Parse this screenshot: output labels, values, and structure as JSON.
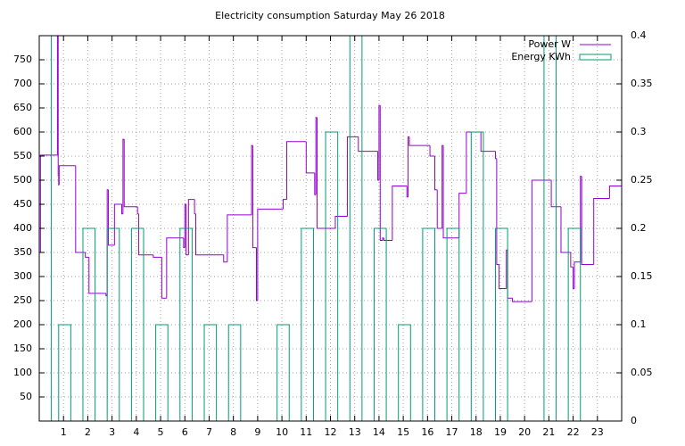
{
  "chart_data": {
    "type": "line",
    "title": "Electricity consumption Saturday May 26 2018",
    "xlim": [
      0,
      24
    ],
    "xticks": [
      1,
      2,
      3,
      4,
      5,
      6,
      7,
      8,
      9,
      10,
      11,
      12,
      13,
      14,
      15,
      16,
      17,
      18,
      19,
      20,
      21,
      22,
      23
    ],
    "ylim": [
      0,
      800
    ],
    "yticks": [
      50,
      100,
      150,
      200,
      250,
      300,
      350,
      400,
      450,
      500,
      550,
      600,
      650,
      700,
      750
    ],
    "y2lim": [
      0,
      0.4
    ],
    "y2ticks": [
      0,
      0.05,
      0.1,
      0.15,
      0.2,
      0.25,
      0.3,
      0.35,
      0.4
    ],
    "grid": true,
    "legend": "top-right",
    "series": [
      {
        "name": "Power W",
        "color": "#9400d3",
        "style": "steps",
        "x": [
          0,
          0.05,
          0.75,
          0.78,
          0.8,
          0.82,
          1.5,
          1.9,
          2.05,
          2.75,
          2.8,
          2.85,
          3.1,
          3.4,
          3.45,
          3.5,
          4.05,
          4.1,
          4.7,
          5.05,
          5.25,
          5.95,
          6.0,
          6.05,
          6.15,
          6.4,
          6.45,
          7.6,
          7.75,
          8.75,
          8.8,
          8.95,
          9.0,
          10.05,
          10.2,
          11.0,
          11.35,
          11.4,
          11.45,
          12.2,
          12.7,
          13.15,
          13.95,
          14.0,
          14.05,
          14.15,
          14.2,
          14.55,
          15.15,
          15.2,
          15.25,
          16.1,
          16.3,
          16.4,
          16.6,
          16.65,
          17.3,
          17.6,
          18.2,
          18.8,
          18.85,
          18.95,
          19.25,
          19.3,
          19.5,
          20.3,
          21.1,
          21.5,
          21.9,
          22.0,
          22.05,
          22.3,
          22.35,
          22.85,
          23.5
        ],
        "values": [
          350,
          552,
          850,
          510,
          490,
          530,
          350,
          340,
          265,
          260,
          480,
          365,
          450,
          430,
          585,
          445,
          430,
          345,
          340,
          255,
          380,
          360,
          450,
          345,
          460,
          430,
          345,
          330,
          428,
          572,
          360,
          250,
          440,
          460,
          580,
          515,
          470,
          630,
          400,
          425,
          590,
          560,
          500,
          655,
          375,
          380,
          375,
          488,
          465,
          590,
          572,
          550,
          480,
          400,
          572,
          380,
          473,
          600,
          560,
          545,
          325,
          275,
          355,
          255,
          248,
          500,
          445,
          350,
          320,
          275,
          330,
          508,
          325,
          462,
          488
        ]
      },
      {
        "name": "Energy KWh",
        "color": "#009e73",
        "style": "boxes",
        "axis": "y2",
        "x": [
          0.25,
          1.05,
          2.05,
          3.05,
          4.05,
          5.05,
          6.05,
          7.05,
          8.05,
          10.05,
          11.05,
          12.05,
          13.05,
          14.05,
          15.05,
          16.05,
          17.05,
          18.05,
          19.05,
          21.05,
          22.05
        ],
        "values": [
          0.45,
          0.1,
          0.2,
          0.2,
          0.2,
          0.1,
          0.2,
          0.1,
          0.1,
          0.1,
          0.2,
          0.3,
          0.45,
          0.2,
          0.1,
          0.2,
          0.2,
          0.3,
          0.2,
          0.45,
          0.2
        ]
      }
    ]
  }
}
